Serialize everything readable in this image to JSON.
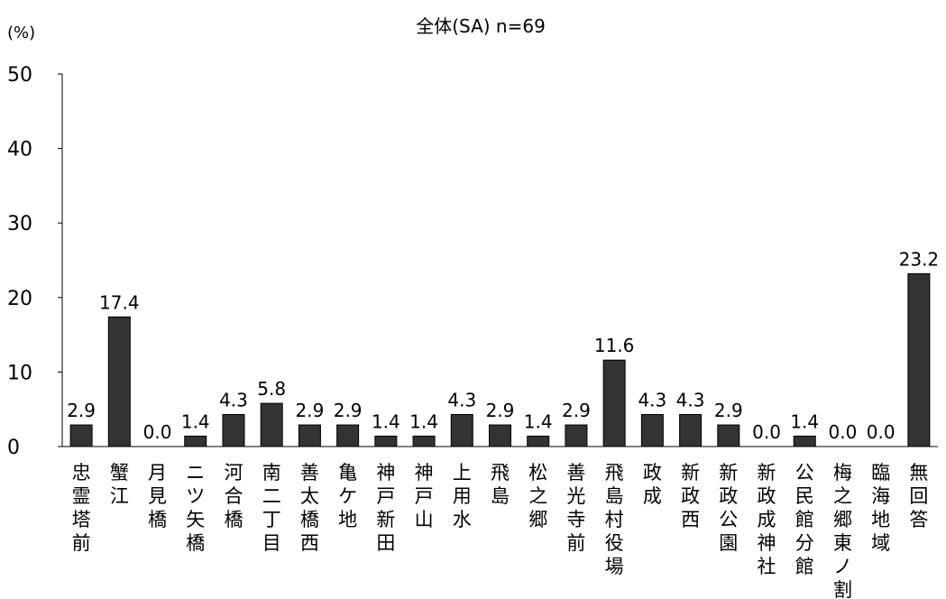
{
  "chart_data": {
    "type": "bar",
    "title": "全体(SA) n=69",
    "ylabel": "(%)",
    "xlabel": "",
    "ylim": [
      0,
      50
    ],
    "yticks": [
      0,
      10,
      20,
      30,
      40,
      50
    ],
    "grid": false,
    "categories": [
      "忠霊塔前",
      "蟹江",
      "月見橋",
      "ニツ矢橋",
      "河合橋",
      "南二丁目",
      "善太橋西",
      "亀ケ地",
      "神戸新田",
      "神戸山",
      "上用水",
      "飛島",
      "松之郷",
      "善光寺前",
      "飛島村役場",
      "政成",
      "新政西",
      "新政公園",
      "新政成神社",
      "公民館分館",
      "梅之郷東ノ割",
      "臨海地域",
      "無回答"
    ],
    "values": [
      2.9,
      17.4,
      0.0,
      1.4,
      4.3,
      5.8,
      2.9,
      2.9,
      1.4,
      1.4,
      4.3,
      2.9,
      1.4,
      2.9,
      11.6,
      4.3,
      4.3,
      2.9,
      0.0,
      1.4,
      0.0,
      0.0,
      23.2
    ],
    "value_labels": [
      "2.9",
      "17.4",
      "0.0",
      "1.4",
      "4.3",
      "5.8",
      "2.9",
      "2.9",
      "1.4",
      "1.4",
      "4.3",
      "2.9",
      "1.4",
      "2.9",
      "11.6",
      "4.3",
      "4.3",
      "2.9",
      "0.0",
      "1.4",
      "0.0",
      "0.0",
      "23.2"
    ],
    "bar_color": "#333333"
  }
}
